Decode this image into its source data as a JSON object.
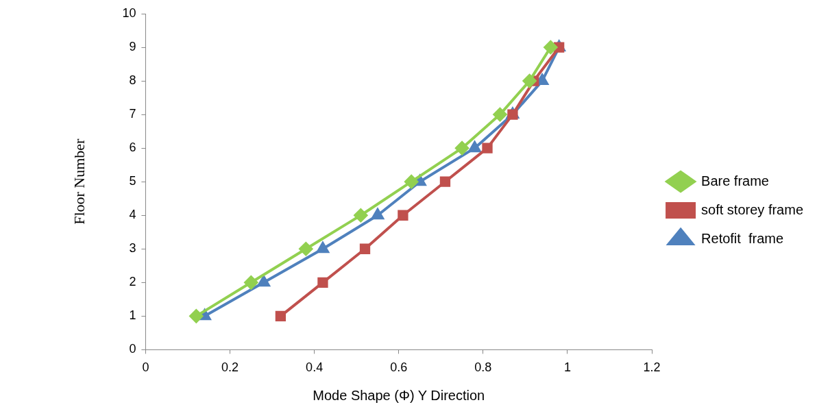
{
  "chart_data": {
    "type": "line",
    "xlabel": "Mode Shape (Φ) Y Direction",
    "ylabel": "Floor Number",
    "xlim": [
      0,
      1.2
    ],
    "xticks": [
      0,
      0.2,
      0.4,
      0.6,
      0.8,
      1,
      1.2
    ],
    "ylim": [
      0,
      10
    ],
    "yticks": [
      0,
      1,
      2,
      3,
      4,
      5,
      6,
      7,
      8,
      9,
      10
    ],
    "grid": false,
    "legend": "right",
    "line_style": "solid",
    "series": [
      {
        "name": "Bare frame",
        "color": "#92d050",
        "marker": "diamond",
        "x": [
          0.12,
          0.25,
          0.38,
          0.51,
          0.63,
          0.75,
          0.84,
          0.91,
          0.96
        ],
        "values": [
          1,
          2,
          3,
          4,
          5,
          6,
          7,
          8,
          9
        ]
      },
      {
        "name": "soft storey frame",
        "color": "#c0504d",
        "marker": "square",
        "x": [
          0.32,
          0.42,
          0.52,
          0.61,
          0.71,
          0.81,
          0.87,
          0.92,
          0.98
        ],
        "values": [
          1,
          2,
          3,
          4,
          5,
          6,
          7,
          8,
          9
        ]
      },
      {
        "name": "Retofit  frame",
        "color": "#4f81bd",
        "marker": "triangle",
        "x": [
          0.14,
          0.28,
          0.42,
          0.55,
          0.65,
          0.78,
          0.87,
          0.94,
          0.98
        ],
        "values": [
          1,
          2,
          3,
          4,
          5,
          6,
          7,
          8,
          9
        ]
      }
    ]
  }
}
